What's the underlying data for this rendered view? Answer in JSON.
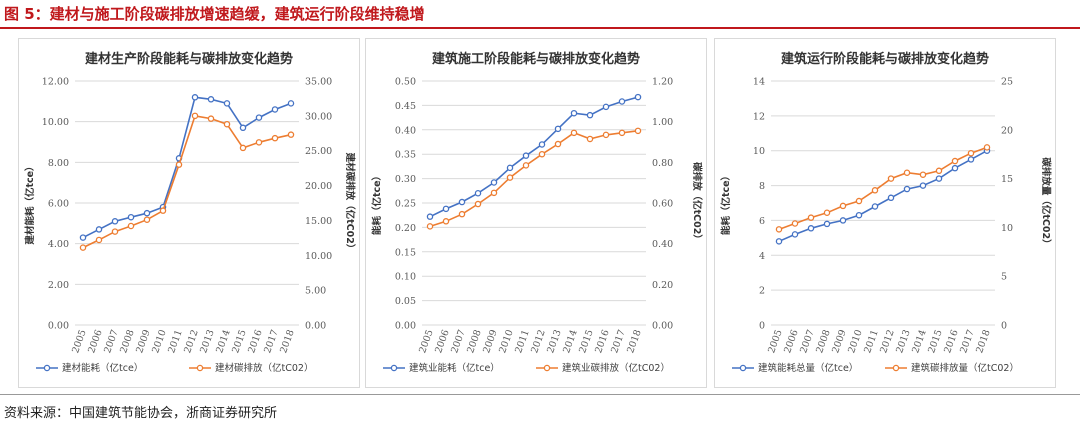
{
  "figure_title": "图 5：建材与施工阶段碳排放增速趋缓，建筑运行阶段维持稳增",
  "source": "资料来源：中国建筑节能协会，浙商证券研究所",
  "colors": {
    "blue": "#4472c4",
    "orange": "#ed7d31",
    "title_red": "#c0181c"
  },
  "chart_data": [
    {
      "type": "line",
      "title": "建材生产阶段能耗与碳排放变化趋势",
      "x": [
        "2005",
        "2006",
        "2007",
        "2008",
        "2009",
        "2010",
        "2011",
        "2012",
        "2013",
        "2014",
        "2015",
        "2016",
        "2017",
        "2018"
      ],
      "ylabel_left": "建材能耗（亿tce）",
      "ylabel_right": "建材碳排放（亿tC02）",
      "ylim_left": [
        0,
        12
      ],
      "ylim_right": [
        0,
        35
      ],
      "yticks_left": [
        "0.00",
        "2.00",
        "4.00",
        "6.00",
        "8.00",
        "10.00",
        "12.00"
      ],
      "yticks_right": [
        "0.00",
        "5.00",
        "10.00",
        "15.00",
        "20.00",
        "25.00",
        "30.00",
        "35.00"
      ],
      "series": [
        {
          "name": "建材能耗（亿tce）",
          "axis": "left",
          "color": "#4472c4",
          "values": [
            4.3,
            4.7,
            5.1,
            5.3,
            5.5,
            5.8,
            8.2,
            11.2,
            11.1,
            10.9,
            9.7,
            10.2,
            10.6,
            10.9
          ]
        },
        {
          "name": "建材碳排放（亿tC02）",
          "axis": "right",
          "color": "#ed7d31",
          "values": [
            11.1,
            12.2,
            13.4,
            14.2,
            15.1,
            16.4,
            23.0,
            30.0,
            29.6,
            28.8,
            25.4,
            26.2,
            26.8,
            27.3
          ]
        }
      ],
      "grid": true,
      "legend": "bottom"
    },
    {
      "type": "line",
      "title": "建筑施工阶段能耗与碳排放变化趋势",
      "x": [
        "2005",
        "2006",
        "2007",
        "2008",
        "2009",
        "2010",
        "2011",
        "2012",
        "2013",
        "2014",
        "2015",
        "2016",
        "2017",
        "2018"
      ],
      "ylabel_left": "能耗（亿tce）",
      "ylabel_right": "碳排放（亿tC02）",
      "ylim_left": [
        0,
        0.5
      ],
      "ylim_right": [
        0,
        1.2
      ],
      "yticks_left": [
        "0.00",
        "0.05",
        "0.10",
        "0.15",
        "0.20",
        "0.25",
        "0.30",
        "0.35",
        "0.40",
        "0.45",
        "0.50"
      ],
      "yticks_right": [
        "0.00",
        "0.20",
        "0.40",
        "0.60",
        "0.80",
        "1.00",
        "1.20"
      ],
      "series": [
        {
          "name": "建筑业能耗（亿tce）",
          "axis": "left",
          "color": "#4472c4",
          "values": [
            0.222,
            0.238,
            0.252,
            0.27,
            0.292,
            0.322,
            0.347,
            0.37,
            0.402,
            0.434,
            0.43,
            0.447,
            0.458,
            0.467
          ]
        },
        {
          "name": "建筑业碳排放（亿tC02）",
          "axis": "right",
          "color": "#ed7d31",
          "values": [
            0.485,
            0.51,
            0.545,
            0.595,
            0.65,
            0.725,
            0.785,
            0.84,
            0.89,
            0.945,
            0.915,
            0.935,
            0.945,
            0.955
          ]
        }
      ],
      "grid": true,
      "legend": "bottom"
    },
    {
      "type": "line",
      "title": "建筑运行阶段能耗与碳排放变化趋势",
      "x": [
        "2005",
        "2006",
        "2007",
        "2008",
        "2009",
        "2010",
        "2011",
        "2012",
        "2013",
        "2014",
        "2015",
        "2016",
        "2017",
        "2018"
      ],
      "ylabel_left": "能耗（亿tce）",
      "ylabel_right": "碳排放量（亿tC02）",
      "ylim_left": [
        0,
        14
      ],
      "ylim_right": [
        0,
        25
      ],
      "yticks_left": [
        "0",
        "2",
        "4",
        "6",
        "8",
        "10",
        "12",
        "14"
      ],
      "yticks_right": [
        "0",
        "5",
        "10",
        "15",
        "20",
        "25"
      ],
      "series": [
        {
          "name": "建筑能耗总量（亿tce）",
          "axis": "left",
          "color": "#4472c4",
          "values": [
            4.8,
            5.2,
            5.55,
            5.8,
            6.0,
            6.3,
            6.8,
            7.3,
            7.8,
            8.0,
            8.4,
            9.0,
            9.5,
            10.0
          ]
        },
        {
          "name": "建筑碳排放量（亿tC02）",
          "axis": "right",
          "color": "#ed7d31",
          "values": [
            9.8,
            10.4,
            11.0,
            11.5,
            12.2,
            12.7,
            13.8,
            15.0,
            15.6,
            15.4,
            15.8,
            16.8,
            17.6,
            18.2
          ]
        }
      ],
      "grid": true,
      "legend": "bottom"
    }
  ]
}
